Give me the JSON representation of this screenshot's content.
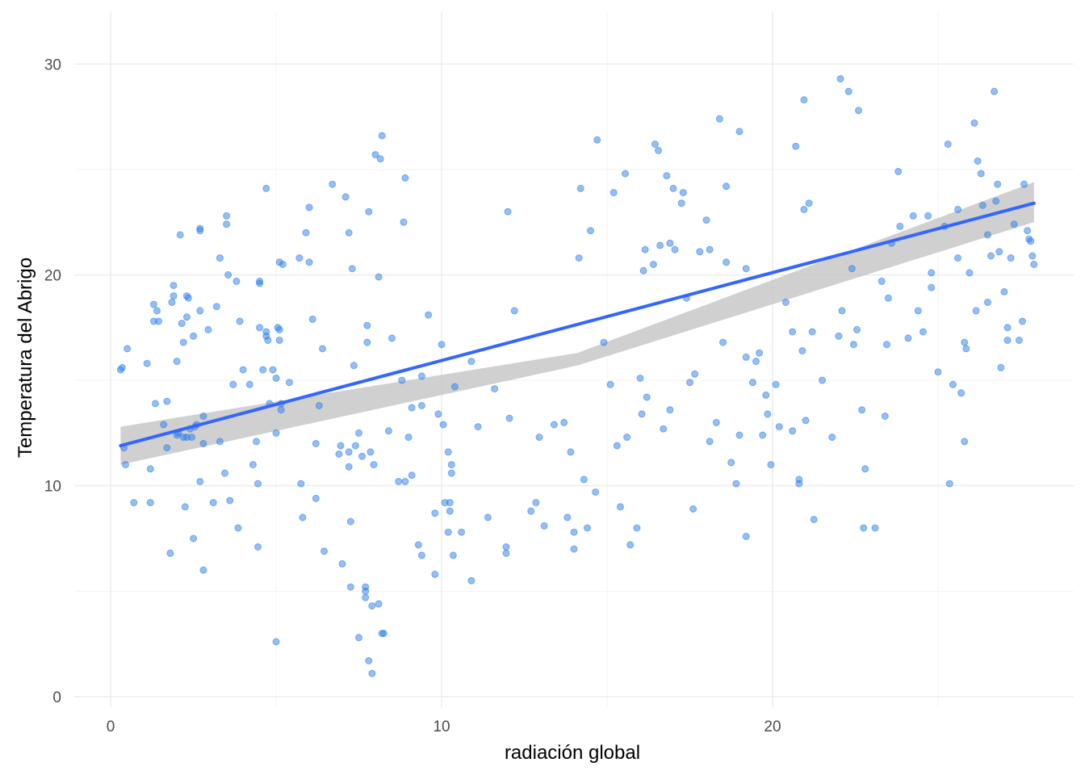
{
  "chart_data": {
    "type": "scatter",
    "xlabel": "radiación global",
    "ylabel": "Temperatura del Abrigo",
    "xlim": [
      -1.1,
      29.1
    ],
    "ylim": [
      -0.5,
      32.5
    ],
    "x_ticks": [
      0,
      10,
      20
    ],
    "x_tick_labels": [
      "0",
      "10",
      "20"
    ],
    "y_ticks": [
      0,
      10,
      20,
      30
    ],
    "y_tick_labels": [
      "0",
      "10",
      "20",
      "30"
    ],
    "grid": true,
    "colors": {
      "points": "#2b7de9",
      "fit_line": "#3366ff",
      "confidence_band": "#c8c8c8"
    },
    "trend": {
      "method": "linear",
      "x_start": 0.3,
      "y_start": 11.9,
      "x_end": 27.9,
      "y_end": 23.4,
      "band_start": [
        11.0,
        12.8
      ],
      "band_mid": [
        15.7,
        16.3
      ],
      "band_end": [
        22.5,
        24.4
      ]
    },
    "points": [
      [
        0.3,
        15.5
      ],
      [
        0.35,
        15.6
      ],
      [
        0.4,
        11.8
      ],
      [
        0.45,
        11.0
      ],
      [
        0.5,
        16.5
      ],
      [
        0.7,
        9.2
      ],
      [
        1.1,
        15.8
      ],
      [
        1.2,
        10.8
      ],
      [
        1.2,
        9.2
      ],
      [
        1.3,
        18.6
      ],
      [
        1.3,
        17.8
      ],
      [
        1.35,
        13.9
      ],
      [
        1.4,
        18.3
      ],
      [
        1.45,
        17.8
      ],
      [
        1.6,
        12.9
      ],
      [
        1.7,
        11.8
      ],
      [
        1.7,
        14.0
      ],
      [
        1.8,
        6.8
      ],
      [
        1.85,
        18.7
      ],
      [
        1.9,
        19.5
      ],
      [
        1.9,
        19.0
      ],
      [
        2.0,
        15.9
      ],
      [
        2.0,
        12.4
      ],
      [
        2.05,
        12.5
      ],
      [
        2.1,
        21.9
      ],
      [
        2.15,
        17.7
      ],
      [
        2.2,
        16.8
      ],
      [
        2.2,
        12.3
      ],
      [
        2.25,
        9.0
      ],
      [
        2.3,
        19.0
      ],
      [
        2.3,
        18.0
      ],
      [
        2.3,
        12.3
      ],
      [
        2.35,
        18.9
      ],
      [
        2.4,
        12.7
      ],
      [
        2.45,
        12.3
      ],
      [
        2.5,
        17.1
      ],
      [
        2.5,
        7.5
      ],
      [
        2.55,
        12.8
      ],
      [
        2.6,
        12.9
      ],
      [
        2.7,
        22.2
      ],
      [
        2.7,
        22.1
      ],
      [
        2.7,
        18.3
      ],
      [
        2.7,
        10.2
      ],
      [
        2.8,
        13.3
      ],
      [
        2.8,
        6.0
      ],
      [
        2.8,
        12.0
      ],
      [
        2.95,
        17.4
      ],
      [
        3.1,
        9.2
      ],
      [
        3.2,
        18.5
      ],
      [
        3.3,
        20.8
      ],
      [
        3.3,
        12.1
      ],
      [
        3.45,
        10.6
      ],
      [
        3.5,
        22.8
      ],
      [
        3.5,
        22.4
      ],
      [
        3.55,
        20.0
      ],
      [
        3.6,
        9.3
      ],
      [
        3.7,
        14.8
      ],
      [
        3.8,
        19.7
      ],
      [
        3.85,
        8.0
      ],
      [
        3.9,
        17.8
      ],
      [
        4.0,
        15.5
      ],
      [
        4.2,
        14.8
      ],
      [
        4.3,
        11.0
      ],
      [
        4.4,
        12.1
      ],
      [
        4.45,
        7.1
      ],
      [
        4.45,
        10.1
      ],
      [
        4.5,
        19.6
      ],
      [
        4.5,
        19.7
      ],
      [
        4.5,
        17.5
      ],
      [
        4.6,
        15.5
      ],
      [
        4.7,
        24.1
      ],
      [
        4.7,
        17.1
      ],
      [
        4.7,
        17.3
      ],
      [
        4.75,
        16.9
      ],
      [
        4.8,
        13.9
      ],
      [
        4.9,
        15.5
      ],
      [
        5.0,
        2.6
      ],
      [
        5.0,
        15.1
      ],
      [
        5.0,
        12.5
      ],
      [
        5.05,
        17.5
      ],
      [
        5.1,
        20.6
      ],
      [
        5.1,
        17.4
      ],
      [
        5.1,
        16.9
      ],
      [
        5.15,
        13.6
      ],
      [
        5.15,
        13.9
      ],
      [
        5.2,
        20.5
      ],
      [
        5.4,
        14.9
      ],
      [
        5.7,
        20.8
      ],
      [
        5.75,
        10.1
      ],
      [
        5.8,
        8.5
      ],
      [
        5.9,
        22.0
      ],
      [
        6.0,
        20.6
      ],
      [
        6.0,
        23.2
      ],
      [
        6.1,
        17.9
      ],
      [
        6.2,
        9.4
      ],
      [
        6.2,
        12.0
      ],
      [
        6.3,
        13.8
      ],
      [
        6.4,
        16.5
      ],
      [
        6.45,
        6.9
      ],
      [
        6.7,
        24.3
      ],
      [
        6.9,
        11.5
      ],
      [
        6.95,
        11.9
      ],
      [
        7.0,
        6.3
      ],
      [
        7.1,
        23.7
      ],
      [
        7.2,
        22.0
      ],
      [
        7.2,
        11.6
      ],
      [
        7.2,
        10.9
      ],
      [
        7.25,
        8.3
      ],
      [
        7.25,
        5.2
      ],
      [
        7.3,
        20.3
      ],
      [
        7.35,
        15.7
      ],
      [
        7.4,
        11.9
      ],
      [
        7.5,
        2.8
      ],
      [
        7.5,
        12.5
      ],
      [
        7.6,
        11.4
      ],
      [
        7.7,
        5.2
      ],
      [
        7.7,
        5.0
      ],
      [
        7.7,
        4.7
      ],
      [
        7.75,
        16.8
      ],
      [
        7.75,
        17.6
      ],
      [
        7.8,
        23.0
      ],
      [
        7.8,
        1.7
      ],
      [
        7.85,
        11.6
      ],
      [
        7.9,
        4.3
      ],
      [
        7.9,
        1.1
      ],
      [
        7.95,
        11.0
      ],
      [
        8.0,
        25.7
      ],
      [
        8.1,
        19.9
      ],
      [
        8.1,
        4.4
      ],
      [
        8.15,
        25.5
      ],
      [
        8.2,
        26.6
      ],
      [
        8.2,
        3.0
      ],
      [
        8.25,
        3.0
      ],
      [
        8.4,
        12.6
      ],
      [
        8.5,
        17.0
      ],
      [
        8.7,
        10.2
      ],
      [
        8.8,
        15.0
      ],
      [
        8.85,
        22.5
      ],
      [
        8.9,
        24.6
      ],
      [
        8.9,
        10.2
      ],
      [
        9.0,
        12.3
      ],
      [
        9.1,
        10.5
      ],
      [
        9.1,
        13.7
      ],
      [
        9.3,
        7.2
      ],
      [
        9.4,
        15.2
      ],
      [
        9.4,
        6.7
      ],
      [
        9.4,
        13.8
      ],
      [
        9.6,
        18.1
      ],
      [
        9.8,
        8.7
      ],
      [
        9.8,
        5.8
      ],
      [
        9.9,
        13.4
      ],
      [
        10.0,
        16.7
      ],
      [
        10.05,
        12.9
      ],
      [
        10.1,
        9.2
      ],
      [
        10.2,
        7.8
      ],
      [
        10.2,
        11.6
      ],
      [
        10.25,
        9.2
      ],
      [
        10.25,
        8.8
      ],
      [
        10.3,
        11.0
      ],
      [
        10.3,
        10.6
      ],
      [
        10.35,
        6.7
      ],
      [
        10.4,
        14.7
      ],
      [
        10.6,
        7.8
      ],
      [
        10.9,
        5.5
      ],
      [
        10.9,
        15.9
      ],
      [
        11.1,
        12.8
      ],
      [
        11.4,
        8.5
      ],
      [
        11.6,
        14.6
      ],
      [
        11.95,
        7.1
      ],
      [
        11.95,
        6.8
      ],
      [
        12.0,
        23.0
      ],
      [
        12.05,
        13.2
      ],
      [
        12.2,
        18.3
      ],
      [
        12.7,
        8.8
      ],
      [
        12.85,
        9.2
      ],
      [
        12.95,
        12.3
      ],
      [
        13.1,
        8.1
      ],
      [
        13.4,
        12.9
      ],
      [
        13.7,
        13.0
      ],
      [
        13.8,
        8.5
      ],
      [
        13.9,
        11.6
      ],
      [
        14.0,
        7.8
      ],
      [
        14.0,
        7.0
      ],
      [
        14.15,
        20.8
      ],
      [
        14.2,
        24.1
      ],
      [
        14.3,
        10.3
      ],
      [
        14.4,
        8.0
      ],
      [
        14.5,
        22.1
      ],
      [
        14.65,
        9.7
      ],
      [
        14.7,
        26.4
      ],
      [
        14.9,
        16.8
      ],
      [
        15.1,
        14.8
      ],
      [
        15.2,
        23.9
      ],
      [
        15.3,
        11.9
      ],
      [
        15.55,
        24.8
      ],
      [
        15.6,
        12.3
      ],
      [
        15.7,
        7.2
      ],
      [
        15.9,
        8.0
      ],
      [
        16.0,
        15.1
      ],
      [
        16.05,
        13.4
      ],
      [
        16.1,
        20.2
      ],
      [
        16.15,
        21.2
      ],
      [
        16.2,
        14.2
      ],
      [
        16.4,
        20.5
      ],
      [
        16.45,
        26.2
      ],
      [
        16.55,
        25.9
      ],
      [
        16.6,
        21.4
      ],
      [
        16.7,
        12.7
      ],
      [
        16.8,
        24.7
      ],
      [
        16.9,
        21.5
      ],
      [
        16.9,
        13.6
      ],
      [
        17.0,
        24.1
      ],
      [
        17.05,
        21.2
      ],
      [
        17.25,
        23.4
      ],
      [
        17.3,
        23.9
      ],
      [
        17.4,
        18.9
      ],
      [
        17.5,
        14.9
      ],
      [
        17.6,
        8.9
      ],
      [
        18.1,
        12.1
      ],
      [
        18.1,
        21.2
      ],
      [
        18.3,
        13.0
      ],
      [
        18.4,
        27.4
      ],
      [
        18.5,
        16.8
      ],
      [
        18.6,
        24.2
      ],
      [
        18.6,
        20.6
      ],
      [
        18.75,
        11.1
      ],
      [
        18.9,
        10.1
      ],
      [
        19.0,
        12.4
      ],
      [
        19.0,
        26.8
      ],
      [
        19.2,
        16.1
      ],
      [
        19.2,
        7.6
      ],
      [
        19.2,
        20.3
      ],
      [
        19.4,
        14.9
      ],
      [
        19.5,
        15.9
      ],
      [
        19.6,
        16.3
      ],
      [
        19.7,
        12.4
      ],
      [
        19.8,
        14.3
      ],
      [
        19.85,
        13.4
      ],
      [
        19.95,
        11.0
      ],
      [
        20.1,
        14.8
      ],
      [
        20.2,
        12.8
      ],
      [
        20.4,
        18.7
      ],
      [
        20.6,
        17.3
      ],
      [
        20.6,
        12.6
      ],
      [
        20.7,
        26.1
      ],
      [
        20.8,
        10.1
      ],
      [
        20.8,
        10.3
      ],
      [
        20.9,
        16.4
      ],
      [
        20.95,
        28.3
      ],
      [
        20.95,
        23.1
      ],
      [
        21.0,
        13.1
      ],
      [
        21.1,
        23.4
      ],
      [
        21.2,
        17.3
      ],
      [
        21.25,
        8.4
      ],
      [
        21.5,
        15.0
      ],
      [
        21.8,
        12.3
      ],
      [
        22.0,
        17.1
      ],
      [
        22.05,
        29.3
      ],
      [
        22.1,
        18.3
      ],
      [
        22.3,
        28.7
      ],
      [
        22.4,
        20.3
      ],
      [
        22.45,
        16.7
      ],
      [
        22.55,
        17.4
      ],
      [
        22.6,
        27.8
      ],
      [
        22.7,
        13.6
      ],
      [
        22.75,
        8.0
      ],
      [
        22.8,
        10.8
      ],
      [
        23.1,
        8.0
      ],
      [
        23.3,
        19.7
      ],
      [
        23.4,
        13.3
      ],
      [
        23.45,
        16.7
      ],
      [
        23.5,
        18.9
      ],
      [
        23.6,
        21.5
      ],
      [
        23.8,
        24.9
      ],
      [
        23.85,
        22.3
      ],
      [
        24.1,
        17.0
      ],
      [
        24.25,
        22.8
      ],
      [
        24.4,
        18.3
      ],
      [
        24.55,
        17.3
      ],
      [
        24.7,
        22.8
      ],
      [
        24.8,
        19.4
      ],
      [
        24.8,
        20.1
      ],
      [
        25.0,
        15.4
      ],
      [
        25.2,
        22.3
      ],
      [
        25.3,
        26.2
      ],
      [
        25.35,
        10.1
      ],
      [
        25.45,
        14.8
      ],
      [
        25.6,
        23.1
      ],
      [
        25.6,
        20.8
      ],
      [
        25.7,
        14.4
      ],
      [
        25.8,
        12.1
      ],
      [
        25.8,
        16.8
      ],
      [
        25.85,
        16.5
      ],
      [
        25.95,
        20.1
      ],
      [
        26.1,
        27.2
      ],
      [
        26.15,
        18.3
      ],
      [
        26.2,
        25.4
      ],
      [
        26.3,
        24.8
      ],
      [
        26.35,
        23.3
      ],
      [
        26.5,
        18.7
      ],
      [
        26.5,
        21.9
      ],
      [
        26.6,
        20.9
      ],
      [
        26.7,
        28.7
      ],
      [
        26.75,
        23.5
      ],
      [
        26.8,
        24.3
      ],
      [
        26.85,
        21.1
      ],
      [
        26.9,
        15.6
      ],
      [
        27.0,
        19.2
      ],
      [
        27.1,
        17.5
      ],
      [
        27.1,
        16.9
      ],
      [
        27.2,
        20.8
      ],
      [
        27.3,
        22.4
      ],
      [
        27.45,
        16.9
      ],
      [
        27.55,
        17.8
      ],
      [
        27.6,
        24.3
      ],
      [
        27.7,
        22.1
      ],
      [
        27.75,
        21.7
      ],
      [
        27.8,
        21.6
      ],
      [
        27.85,
        20.9
      ],
      [
        27.9,
        20.5
      ],
      [
        17.65,
        15.3
      ],
      [
        17.8,
        21.1
      ],
      [
        18.0,
        22.6
      ],
      [
        15.4,
        9.0
      ]
    ]
  }
}
